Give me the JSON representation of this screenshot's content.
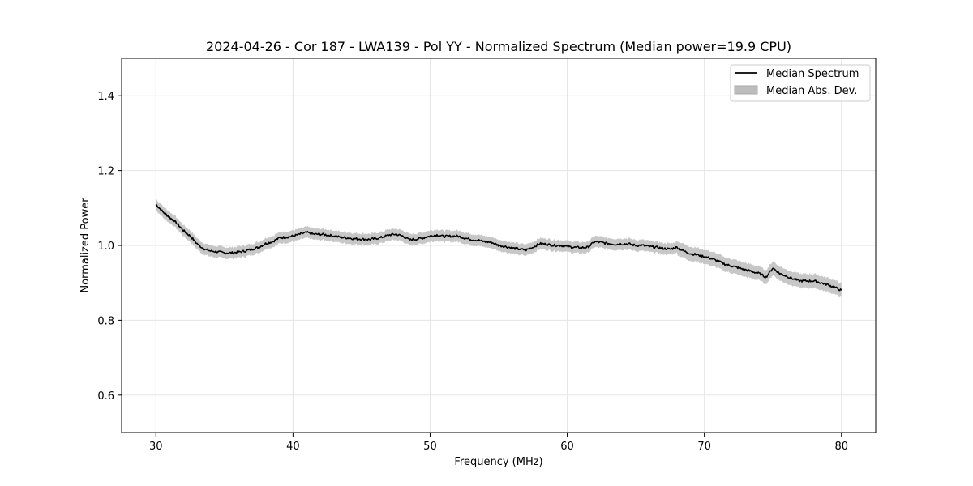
{
  "chart_data": {
    "type": "line",
    "title": "2024-04-26 - Cor 187 - LWA139 - Pol YY - Normalized Spectrum (Median power=19.9 CPU)",
    "xlabel": "Frequency (MHz)",
    "ylabel": "Normalized Power",
    "xlim": [
      27.5,
      82.5
    ],
    "ylim": [
      0.5,
      1.5
    ],
    "xticks": [
      30,
      40,
      50,
      60,
      70,
      80
    ],
    "yticks": [
      0.6,
      0.8,
      1.0,
      1.2,
      1.4
    ],
    "xtick_labels": [
      "30",
      "40",
      "50",
      "60",
      "70",
      "80"
    ],
    "ytick_labels": [
      "0.6",
      "0.8",
      "1.0",
      "1.2",
      "1.4"
    ],
    "grid": true,
    "legend_position": "top-right",
    "colors": {
      "line": "#000000",
      "band": "#bdbdbd",
      "grid": "#e5e5e5"
    },
    "series": [
      {
        "name": "Median Spectrum",
        "x": [
          30,
          30.5,
          31,
          31.5,
          32,
          32.5,
          33,
          33.5,
          34,
          34.5,
          35,
          35.5,
          36,
          36.5,
          37,
          37.5,
          38,
          38.5,
          39,
          39.5,
          40,
          40.5,
          41,
          41.5,
          42,
          42.5,
          43,
          43.5,
          44,
          44.5,
          45,
          45.5,
          46,
          46.5,
          47,
          47.5,
          48,
          48.5,
          49,
          49.5,
          50,
          50.5,
          51,
          51.5,
          52,
          52.5,
          53,
          53.5,
          54,
          54.5,
          55,
          55.5,
          56,
          56.5,
          57,
          57.5,
          58,
          58.5,
          59,
          59.5,
          60,
          60.5,
          61,
          61.5,
          62,
          62.5,
          63,
          63.5,
          64,
          64.5,
          65,
          65.5,
          66,
          66.5,
          67,
          67.5,
          68,
          68.5,
          69,
          69.5,
          70,
          70.5,
          71,
          71.5,
          72,
          72.5,
          73,
          73.5,
          74,
          74.5,
          75,
          75.5,
          76,
          76.5,
          77,
          77.5,
          78,
          78.5,
          79,
          79.5,
          80
        ],
        "values": [
          1.11,
          1.09,
          1.075,
          1.06,
          1.04,
          1.025,
          1.005,
          0.99,
          0.985,
          0.983,
          0.98,
          0.98,
          0.982,
          0.985,
          0.99,
          0.995,
          1.005,
          1.01,
          1.02,
          1.022,
          1.025,
          1.03,
          1.035,
          1.03,
          1.03,
          1.028,
          1.025,
          1.022,
          1.02,
          1.018,
          1.017,
          1.016,
          1.018,
          1.022,
          1.028,
          1.03,
          1.025,
          1.015,
          1.017,
          1.02,
          1.025,
          1.028,
          1.024,
          1.025,
          1.025,
          1.02,
          1.016,
          1.014,
          1.01,
          1.008,
          1.0,
          0.997,
          0.993,
          0.99,
          0.988,
          0.995,
          1.005,
          1.003,
          1.0,
          1.0,
          0.997,
          0.995,
          0.994,
          0.995,
          1.01,
          1.008,
          1.005,
          1.003,
          1.004,
          1.004,
          1.0,
          1.0,
          0.997,
          0.995,
          0.992,
          0.99,
          0.995,
          0.985,
          0.978,
          0.975,
          0.97,
          0.965,
          0.958,
          0.95,
          0.945,
          0.94,
          0.935,
          0.93,
          0.925,
          0.915,
          0.94,
          0.925,
          0.918,
          0.91,
          0.905,
          0.905,
          0.905,
          0.9,
          0.895,
          0.888,
          0.88
        ],
        "spread": 0.015
      }
    ],
    "legend": [
      "Median Spectrum",
      "Median Abs. Dev."
    ]
  }
}
